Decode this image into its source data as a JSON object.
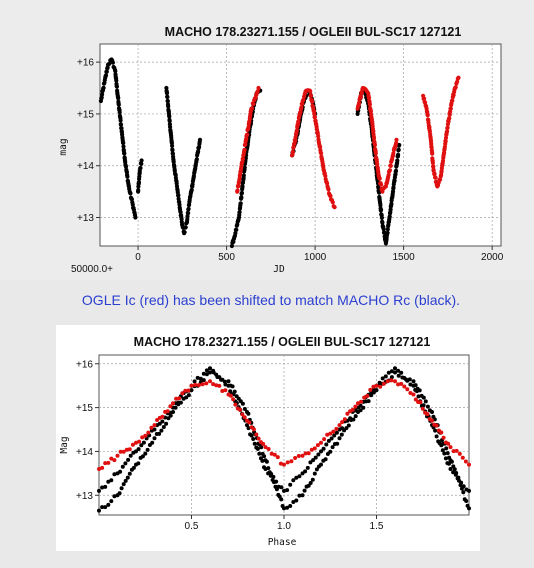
{
  "caption": "OGLE Ic (red) has been shifted to match MACHO Rc (black).",
  "colors": {
    "macho": "#000000",
    "ogle": "#e01010",
    "caption": "#2b3fd0",
    "grid": "#a0a0a0"
  },
  "chart_data": [
    {
      "type": "scatter",
      "title": "MACHO 178.23271.155 / OGLEII BUL-SC17 127121",
      "xlabel": "JD",
      "ylabel": "mag",
      "x_offset_label": "50000.0+",
      "xlim": [
        -215,
        2050
      ],
      "ylim": [
        16.35,
        12.45
      ],
      "x_ticks": [
        0,
        500,
        1000,
        1500,
        2000
      ],
      "x_tick_labels": [
        "0",
        "500",
        "1000",
        "1500",
        "2000"
      ],
      "y_ticks": [
        13,
        14,
        15,
        16
      ],
      "y_tick_labels": [
        "+13",
        "+14",
        "+15",
        "+16"
      ],
      "grid": true,
      "series": [
        {
          "color": "black",
          "segments": [
            [
              [
                -210,
                15.25
              ],
              [
                -190,
                15.6
              ],
              [
                -170,
                15.95
              ],
              [
                -150,
                16.05
              ],
              [
                -130,
                15.85
              ],
              [
                -110,
                15.2
              ],
              [
                -90,
                14.6
              ],
              [
                -70,
                14.0
              ],
              [
                -50,
                13.55
              ],
              [
                -30,
                13.25
              ],
              [
                -15,
                13.0
              ]
            ],
            [
              [
                0,
                13.5
              ],
              [
                10,
                13.9
              ],
              [
                20,
                14.1
              ]
            ],
            [
              [
                160,
                15.5
              ],
              [
                180,
                14.8
              ],
              [
                200,
                14.1
              ],
              [
                220,
                13.6
              ],
              [
                240,
                13.1
              ],
              [
                250,
                12.85
              ],
              [
                260,
                12.7
              ],
              [
                275,
                12.9
              ],
              [
                290,
                13.3
              ],
              [
                310,
                13.7
              ],
              [
                330,
                14.1
              ],
              [
                350,
                14.5
              ]
            ],
            [
              [
                530,
                12.45
              ],
              [
                550,
                12.7
              ],
              [
                570,
                13.0
              ],
              [
                590,
                13.6
              ],
              [
                610,
                14.2
              ],
              [
                630,
                14.7
              ],
              [
                650,
                15.1
              ],
              [
                670,
                15.4
              ],
              [
                690,
                15.45
              ]
            ],
            [
              [
                870,
                14.2
              ],
              [
                900,
                14.6
              ],
              [
                920,
                15.0
              ],
              [
                940,
                15.3
              ],
              [
                960,
                15.45
              ],
              [
                980,
                15.3
              ],
              [
                1000,
                15.0
              ]
            ],
            [
              [
                1240,
                15.0
              ],
              [
                1260,
                15.4
              ],
              [
                1280,
                15.45
              ],
              [
                1300,
                15.2
              ],
              [
                1320,
                14.7
              ],
              [
                1340,
                14.1
              ],
              [
                1360,
                13.5
              ],
              [
                1380,
                12.9
              ],
              [
                1400,
                12.5
              ],
              [
                1420,
                13.0
              ],
              [
                1440,
                13.5
              ],
              [
                1460,
                14.0
              ],
              [
                1475,
                14.4
              ]
            ]
          ]
        },
        {
          "color": "red",
          "segments": [
            [
              [
                560,
                13.5
              ],
              [
                580,
                13.9
              ],
              [
                600,
                14.3
              ],
              [
                620,
                14.7
              ],
              [
                640,
                15.1
              ],
              [
                660,
                15.3
              ],
              [
                680,
                15.5
              ]
            ],
            [
              [
                870,
                14.2
              ],
              [
                890,
                14.55
              ],
              [
                910,
                14.95
              ],
              [
                930,
                15.25
              ],
              [
                950,
                15.45
              ],
              [
                970,
                15.45
              ],
              [
                990,
                15.1
              ],
              [
                1010,
                14.7
              ],
              [
                1030,
                14.3
              ],
              [
                1050,
                13.9
              ],
              [
                1070,
                13.6
              ],
              [
                1090,
                13.35
              ],
              [
                1110,
                13.2
              ]
            ],
            [
              [
                1240,
                15.1
              ],
              [
                1270,
                15.5
              ],
              [
                1300,
                15.4
              ],
              [
                1320,
                14.9
              ],
              [
                1340,
                14.3
              ],
              [
                1360,
                13.8
              ],
              [
                1380,
                13.5
              ],
              [
                1400,
                13.6
              ],
              [
                1420,
                13.9
              ],
              [
                1440,
                14.2
              ],
              [
                1460,
                14.5
              ]
            ],
            [
              [
                1610,
                15.35
              ],
              [
                1630,
                15.1
              ],
              [
                1650,
                14.6
              ],
              [
                1670,
                13.9
              ],
              [
                1690,
                13.6
              ],
              [
                1710,
                13.8
              ],
              [
                1730,
                14.3
              ],
              [
                1750,
                14.8
              ],
              [
                1770,
                15.2
              ],
              [
                1790,
                15.5
              ],
              [
                1810,
                15.7
              ]
            ]
          ]
        }
      ]
    },
    {
      "type": "scatter",
      "title": "MACHO 178.23271.155 / OGLEII BUL-SC17 127121",
      "xlabel": "Phase",
      "ylabel": "Mag",
      "xlim": [
        0.0,
        2.0
      ],
      "ylim": [
        16.2,
        12.55
      ],
      "x_ticks": [
        0.5,
        1.0,
        1.5
      ],
      "x_tick_labels": [
        "0.5",
        "1.0",
        "1.5"
      ],
      "y_ticks": [
        13,
        14,
        15,
        16
      ],
      "y_tick_labels": [
        "+13",
        "+14",
        "+15",
        "+16"
      ],
      "grid": true,
      "series": [
        {
          "color": "black",
          "segments": [
            [
              [
                0.0,
                12.65
              ],
              [
                0.1,
                13.0
              ],
              [
                0.2,
                13.7
              ],
              [
                0.3,
                14.3
              ],
              [
                0.4,
                14.9
              ],
              [
                0.5,
                15.4
              ],
              [
                0.6,
                15.8
              ],
              [
                0.7,
                15.6
              ],
              [
                0.8,
                14.9
              ],
              [
                0.9,
                13.8
              ],
              [
                1.0,
                12.7
              ],
              [
                1.1,
                13.0
              ],
              [
                1.2,
                13.7
              ],
              [
                1.3,
                14.3
              ],
              [
                1.4,
                14.9
              ],
              [
                1.5,
                15.4
              ],
              [
                1.6,
                15.8
              ],
              [
                1.7,
                15.6
              ],
              [
                1.8,
                14.9
              ],
              [
                1.9,
                13.8
              ],
              [
                2.0,
                12.7
              ]
            ],
            [
              [
                0.0,
                13.1
              ],
              [
                0.1,
                13.5
              ],
              [
                0.2,
                14.0
              ],
              [
                0.3,
                14.5
              ],
              [
                0.4,
                15.0
              ],
              [
                0.5,
                15.5
              ],
              [
                0.6,
                15.9
              ],
              [
                0.7,
                15.5
              ],
              [
                0.8,
                14.6
              ],
              [
                0.9,
                13.6
              ],
              [
                1.0,
                13.1
              ],
              [
                1.1,
                13.5
              ],
              [
                1.2,
                14.0
              ],
              [
                1.3,
                14.5
              ],
              [
                1.4,
                15.0
              ],
              [
                1.5,
                15.5
              ],
              [
                1.6,
                15.9
              ],
              [
                1.7,
                15.5
              ],
              [
                1.8,
                14.6
              ],
              [
                1.9,
                13.6
              ],
              [
                2.0,
                13.1
              ]
            ]
          ]
        },
        {
          "color": "red",
          "segments": [
            [
              [
                0.0,
                13.6
              ],
              [
                0.1,
                13.9
              ],
              [
                0.2,
                14.2
              ],
              [
                0.3,
                14.6
              ],
              [
                0.4,
                15.1
              ],
              [
                0.5,
                15.5
              ],
              [
                0.6,
                15.6
              ],
              [
                0.7,
                15.3
              ],
              [
                0.8,
                14.7
              ],
              [
                0.9,
                14.1
              ],
              [
                1.0,
                13.7
              ],
              [
                1.1,
                13.9
              ],
              [
                1.2,
                14.2
              ],
              [
                1.3,
                14.6
              ],
              [
                1.4,
                15.1
              ],
              [
                1.5,
                15.5
              ],
              [
                1.6,
                15.6
              ],
              [
                1.7,
                15.3
              ],
              [
                1.8,
                14.7
              ],
              [
                1.9,
                14.1
              ],
              [
                2.0,
                13.7
              ]
            ]
          ]
        }
      ]
    }
  ]
}
